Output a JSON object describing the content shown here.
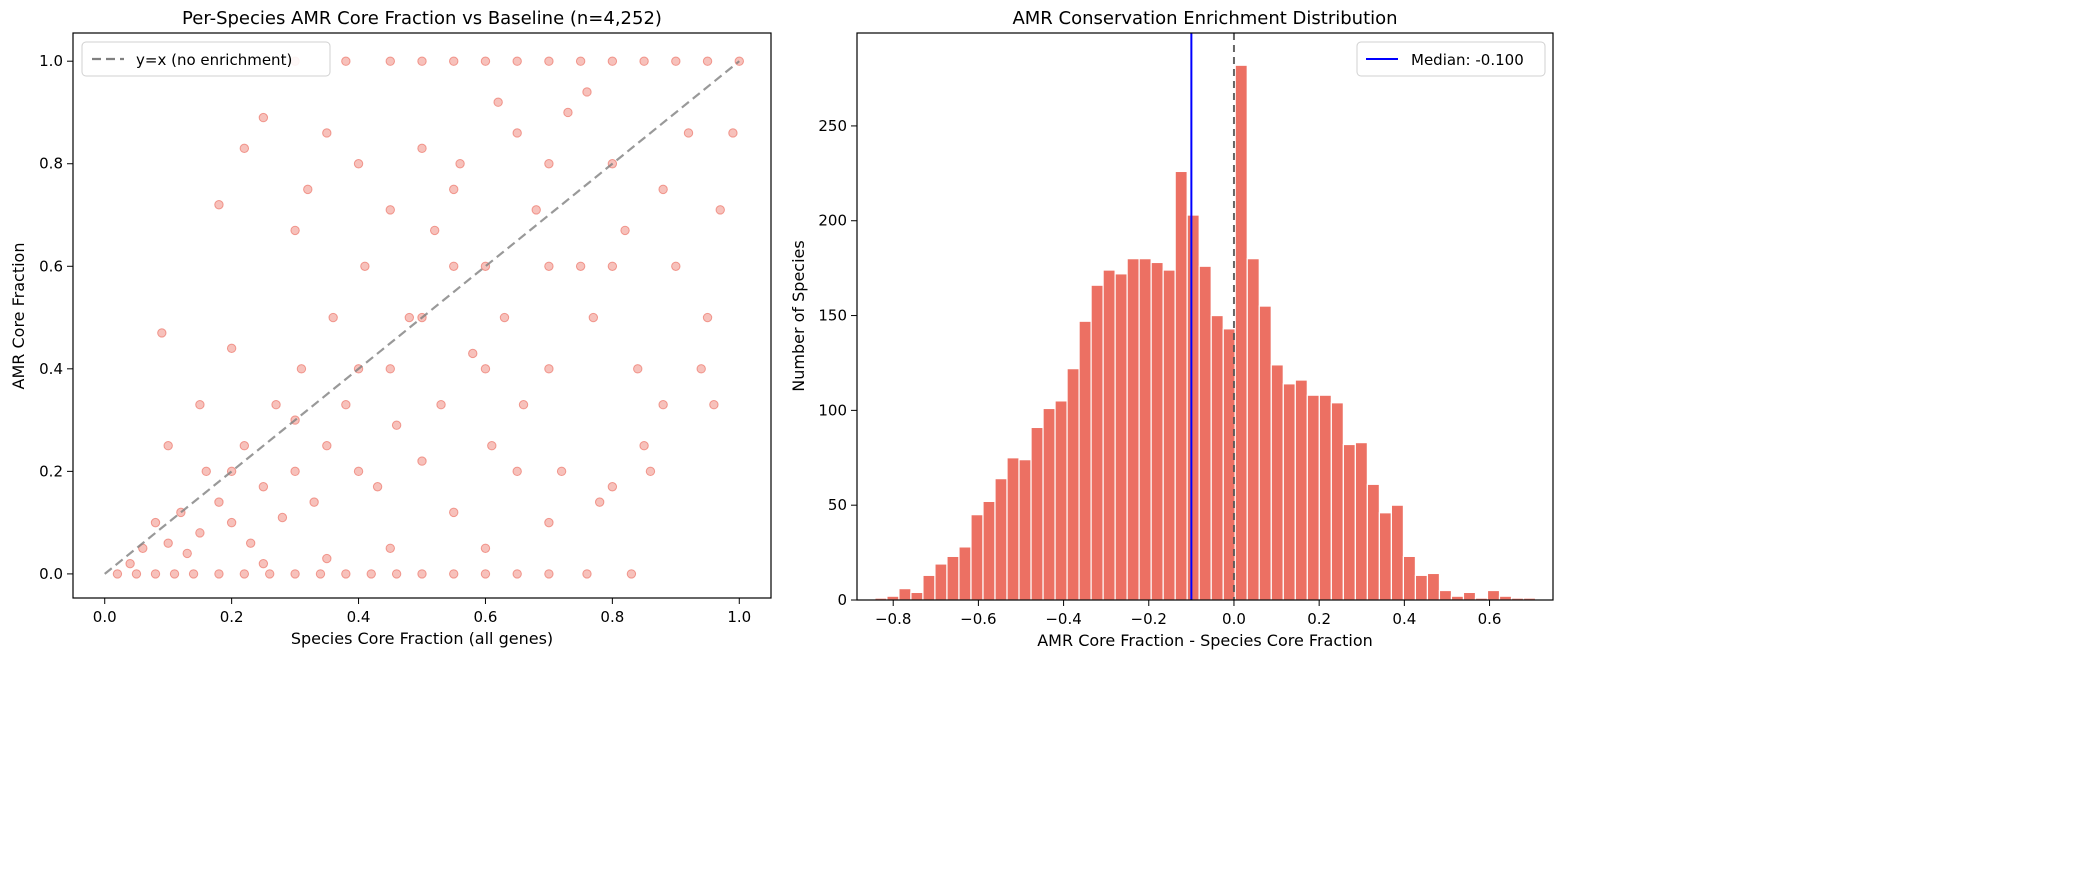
{
  "chart_data": [
    {
      "type": "scatter",
      "title": "Per-Species AMR Core Fraction vs Baseline (n=4,252)",
      "xlabel": "Species Core Fraction (all genes)",
      "ylabel": "AMR Core Fraction",
      "xlim": [
        -0.05,
        1.05
      ],
      "ylim": [
        -0.047,
        1.055
      ],
      "xticks": [
        "0.0",
        "0.2",
        "0.4",
        "0.6",
        "0.8",
        "1.0"
      ],
      "yticks": [
        "0.0",
        "0.2",
        "0.4",
        "0.6",
        "0.8",
        "1.0"
      ],
      "grid": false,
      "color": "#e74c3c",
      "legend": {
        "position": "top-left",
        "entries": [
          "y=x (no enrichment)"
        ]
      },
      "reference_line": {
        "label": "y=x (no enrichment)",
        "color": "#808080",
        "style": "dashed"
      },
      "points": [
        [
          0.02,
          0
        ],
        [
          0.05,
          0
        ],
        [
          0.08,
          0
        ],
        [
          0.11,
          0
        ],
        [
          0.14,
          0
        ],
        [
          0.18,
          0
        ],
        [
          0.22,
          0
        ],
        [
          0.26,
          0
        ],
        [
          0.3,
          0
        ],
        [
          0.34,
          0
        ],
        [
          0.38,
          0
        ],
        [
          0.42,
          0
        ],
        [
          0.46,
          0
        ],
        [
          0.5,
          0
        ],
        [
          0.55,
          0
        ],
        [
          0.6,
          0
        ],
        [
          0.65,
          0
        ],
        [
          0.7,
          0
        ],
        [
          0.76,
          0
        ],
        [
          0.83,
          0
        ],
        [
          0.3,
          1
        ],
        [
          0.38,
          1
        ],
        [
          0.45,
          1
        ],
        [
          0.5,
          1
        ],
        [
          0.55,
          1
        ],
        [
          0.6,
          1
        ],
        [
          0.65,
          1
        ],
        [
          0.7,
          1
        ],
        [
          0.75,
          1
        ],
        [
          0.8,
          1
        ],
        [
          0.85,
          1
        ],
        [
          0.9,
          1
        ],
        [
          0.95,
          1
        ],
        [
          1,
          1
        ],
        [
          0.04,
          0.02
        ],
        [
          0.06,
          0.05
        ],
        [
          0.08,
          0.1
        ],
        [
          0.1,
          0.06
        ],
        [
          0.12,
          0.12
        ],
        [
          0.13,
          0.04
        ],
        [
          0.15,
          0.08
        ],
        [
          0.16,
          0.2
        ],
        [
          0.18,
          0.14
        ],
        [
          0.2,
          0.1
        ],
        [
          0.22,
          0.25
        ],
        [
          0.23,
          0.06
        ],
        [
          0.25,
          0.17
        ],
        [
          0.27,
          0.33
        ],
        [
          0.28,
          0.11
        ],
        [
          0.3,
          0.2
        ],
        [
          0.31,
          0.4
        ],
        [
          0.33,
          0.14
        ],
        [
          0.35,
          0.25
        ],
        [
          0.36,
          0.5
        ],
        [
          0.38,
          0.33
        ],
        [
          0.4,
          0.2
        ],
        [
          0.41,
          0.6
        ],
        [
          0.43,
          0.17
        ],
        [
          0.45,
          0.4
        ],
        [
          0.46,
          0.29
        ],
        [
          0.48,
          0.5
        ],
        [
          0.5,
          0.22
        ],
        [
          0.52,
          0.67
        ],
        [
          0.53,
          0.33
        ],
        [
          0.55,
          0.12
        ],
        [
          0.56,
          0.8
        ],
        [
          0.58,
          0.43
        ],
        [
          0.6,
          0.6
        ],
        [
          0.61,
          0.25
        ],
        [
          0.63,
          0.5
        ],
        [
          0.65,
          0.86
        ],
        [
          0.66,
          0.33
        ],
        [
          0.68,
          0.71
        ],
        [
          0.7,
          0.4
        ],
        [
          0.72,
          0.2
        ],
        [
          0.73,
          0.9
        ],
        [
          0.75,
          0.6
        ],
        [
          0.77,
          0.5
        ],
        [
          0.78,
          0.14
        ],
        [
          0.8,
          0.8
        ],
        [
          0.82,
          0.67
        ],
        [
          0.84,
          0.4
        ],
        [
          0.86,
          0.2
        ],
        [
          0.88,
          0.75
        ],
        [
          0.9,
          0.6
        ],
        [
          0.92,
          0.86
        ],
        [
          0.95,
          0.5
        ],
        [
          0.97,
          0.71
        ],
        [
          0.99,
          0.86
        ],
        [
          0.09,
          0.47
        ],
        [
          0.18,
          0.72
        ],
        [
          0.22,
          0.83
        ],
        [
          0.25,
          0.89
        ],
        [
          0.2,
          0.44
        ],
        [
          0.15,
          0.33
        ],
        [
          0.1,
          0.25
        ],
        [
          0.3,
          0.67
        ],
        [
          0.32,
          0.75
        ],
        [
          0.35,
          0.86
        ],
        [
          0.4,
          0.8
        ],
        [
          0.45,
          0.71
        ],
        [
          0.5,
          0.83
        ],
        [
          0.55,
          0.75
        ],
        [
          0.62,
          0.92
        ],
        [
          0.7,
          0.8
        ],
        [
          0.76,
          0.94
        ],
        [
          0.88,
          0.33
        ],
        [
          0.94,
          0.4
        ],
        [
          0.96,
          0.33
        ],
        [
          0.6,
          0.05
        ],
        [
          0.7,
          0.1
        ],
        [
          0.8,
          0.17
        ],
        [
          0.85,
          0.25
        ],
        [
          0.45,
          0.05
        ],
        [
          0.35,
          0.03
        ],
        [
          0.25,
          0.02
        ],
        [
          0.5,
          0.5
        ],
        [
          0.4,
          0.4
        ],
        [
          0.6,
          0.4
        ],
        [
          0.3,
          0.3
        ],
        [
          0.2,
          0.2
        ],
        [
          0.7,
          0.6
        ],
        [
          0.8,
          0.6
        ],
        [
          0.55,
          0.6
        ],
        [
          0.65,
          0.2
        ]
      ]
    },
    {
      "type": "bar",
      "title": "AMR Conservation Enrichment Distribution",
      "xlabel": "AMR Core Fraction - Species Core Fraction",
      "ylabel": "Number of Species",
      "xlim": [
        -0.885,
        0.749
      ],
      "ylim": [
        0,
        299
      ],
      "xticks": [
        "−0.8",
        "−0.6",
        "−0.4",
        "−0.2",
        "0.0",
        "0.2",
        "0.4",
        "0.6"
      ],
      "yticks": [
        "0",
        "50",
        "100",
        "150",
        "200",
        "250"
      ],
      "grid": false,
      "color": "#e74c3c",
      "bin_start": -0.843,
      "bin_width": 0.0282,
      "counts": [
        1,
        2,
        6,
        4,
        13,
        19,
        23,
        28,
        45,
        52,
        64,
        75,
        74,
        91,
        101,
        105,
        122,
        147,
        166,
        174,
        172,
        180,
        180,
        178,
        174,
        226,
        203,
        176,
        150,
        143,
        282,
        180,
        155,
        124,
        114,
        116,
        108,
        108,
        104,
        82,
        83,
        61,
        46,
        50,
        23,
        13,
        14,
        5,
        2,
        4,
        1,
        5,
        2,
        1,
        1
      ],
      "median": -0.1,
      "median_color": "#0000ff",
      "zero_line": {
        "x": 0,
        "color": "#808080",
        "style": "dashed"
      },
      "legend": {
        "position": "top-right",
        "entries": [
          "Median: -0.100"
        ]
      }
    }
  ]
}
